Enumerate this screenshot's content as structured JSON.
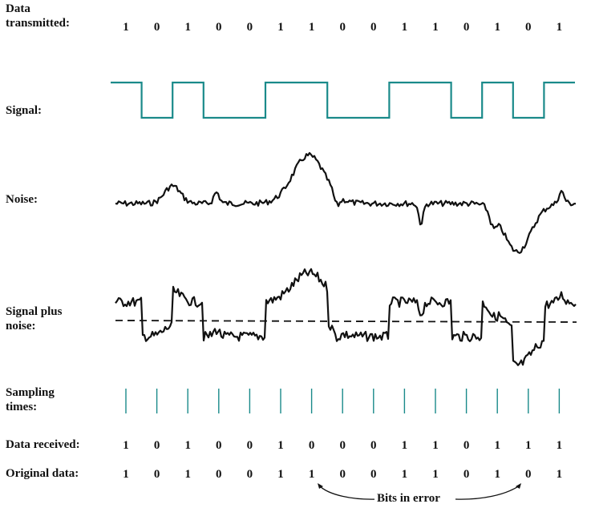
{
  "labels": {
    "data_transmitted": "Data\ntransmitted:",
    "signal": "Signal:",
    "noise": "Noise:",
    "signal_plus_noise": "Signal plus\nnoise:",
    "sampling_times": "Sampling\ntimes:",
    "data_received": "Data received:",
    "original_data": "Original data:"
  },
  "bits_transmitted": [
    "1",
    "0",
    "1",
    "0",
    "0",
    "1",
    "1",
    "0",
    "0",
    "1",
    "1",
    "0",
    "1",
    "0",
    "1"
  ],
  "bits_received": [
    "1",
    "0",
    "1",
    "0",
    "0",
    "1",
    "0",
    "0",
    "0",
    "1",
    "1",
    "0",
    "1",
    "1",
    "1"
  ],
  "bits_original": [
    "1",
    "0",
    "1",
    "0",
    "0",
    "1",
    "1",
    "0",
    "0",
    "1",
    "1",
    "0",
    "1",
    "0",
    "1"
  ],
  "annotation": "Bits in error",
  "error_bit_positions": [
    7,
    14
  ],
  "colors": {
    "signal": "#1a8a8a",
    "trace": "#111111",
    "ink": "#111111"
  }
}
